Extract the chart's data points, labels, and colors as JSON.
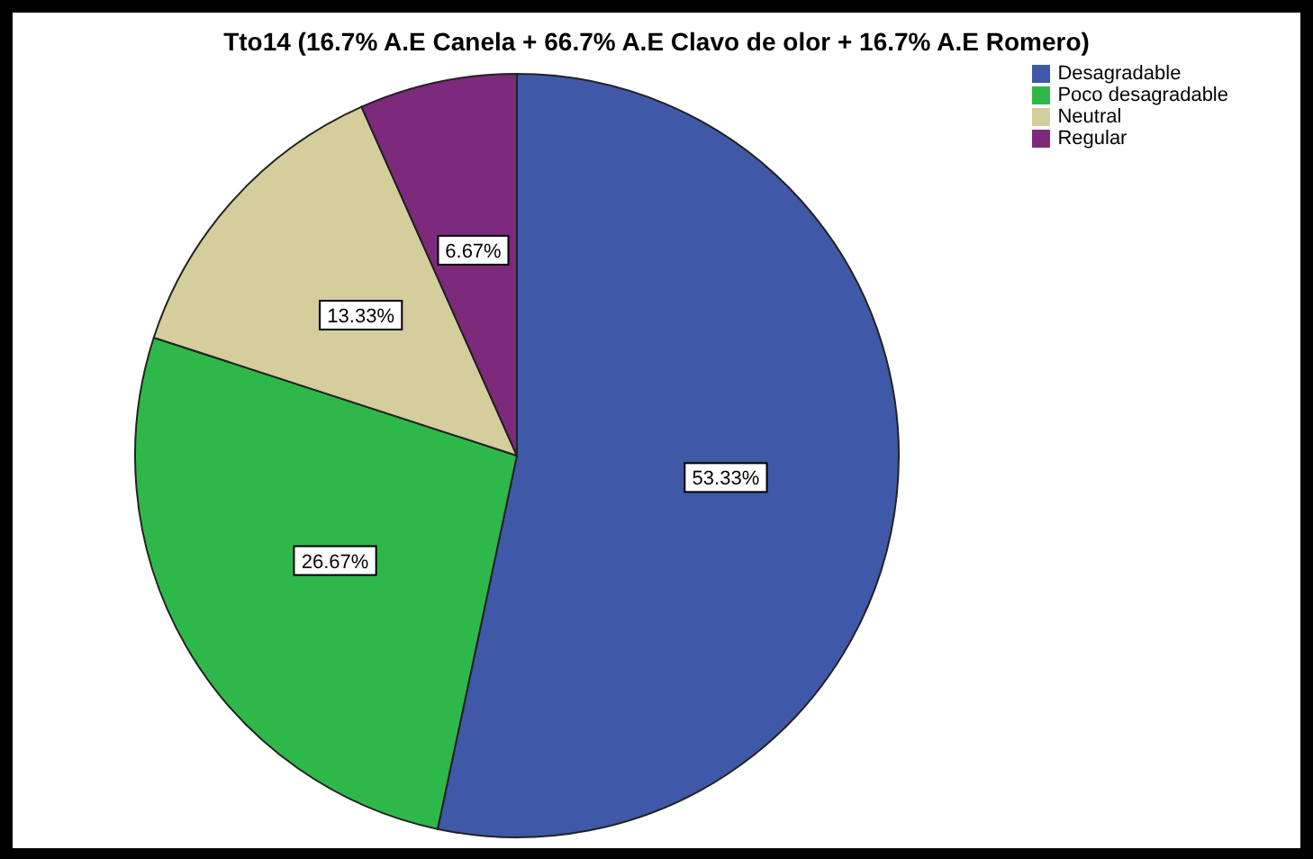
{
  "chart_data": {
    "type": "pie",
    "title": "Tto14 (16.7% A.E Canela + 66.7% A.E Clavo de olor + 16.7% A.E Romero)",
    "categories": [
      "Desagradable",
      "Poco desagradable",
      "Neutral",
      "Regular"
    ],
    "values": [
      53.33,
      26.67,
      13.33,
      6.67
    ],
    "value_labels": [
      "53.33%",
      "26.67%",
      "13.33%",
      "6.67%"
    ],
    "colors": [
      "#3f59a8",
      "#2fb84a",
      "#d4cd9c",
      "#7d2a7c"
    ],
    "legend": "top right"
  }
}
